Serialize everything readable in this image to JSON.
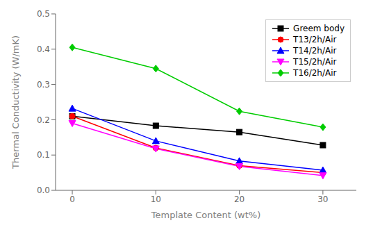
{
  "chart_data": {
    "type": "line",
    "x": [
      0,
      10,
      20,
      30
    ],
    "series": [
      {
        "name": "Greem body",
        "color": "#000000",
        "marker": "square",
        "values": [
          0.21,
          0.183,
          0.165,
          0.128
        ]
      },
      {
        "name": "T13/2h/Air",
        "color": "#ff0000",
        "marker": "circle",
        "values": [
          0.21,
          0.12,
          0.07,
          0.05
        ]
      },
      {
        "name": "T14/2h/Air",
        "color": "#0000ff",
        "marker": "triangle-up",
        "values": [
          0.232,
          0.14,
          0.083,
          0.057
        ]
      },
      {
        "name": "T15/2h/Air",
        "color": "#ff00ff",
        "marker": "triangle-down",
        "values": [
          0.19,
          0.118,
          0.068,
          0.042
        ]
      },
      {
        "name": "T16/2h/Air",
        "color": "#00cc00",
        "marker": "diamond",
        "values": [
          0.405,
          0.345,
          0.224,
          0.179
        ]
      }
    ],
    "xlabel": "Template Content (wt%)",
    "ylabel": "Thermal Conductivity (W/mK)",
    "xlim": [
      -2,
      34
    ],
    "ylim": [
      0.0,
      0.5
    ],
    "xticks": [
      0,
      10,
      20,
      30
    ],
    "yticks": [
      {
        "value": 0.0,
        "label": "0.0"
      },
      0.1,
      0.2,
      0.3,
      0.4,
      0.5
    ],
    "legend": "upper right",
    "grid": false
  }
}
